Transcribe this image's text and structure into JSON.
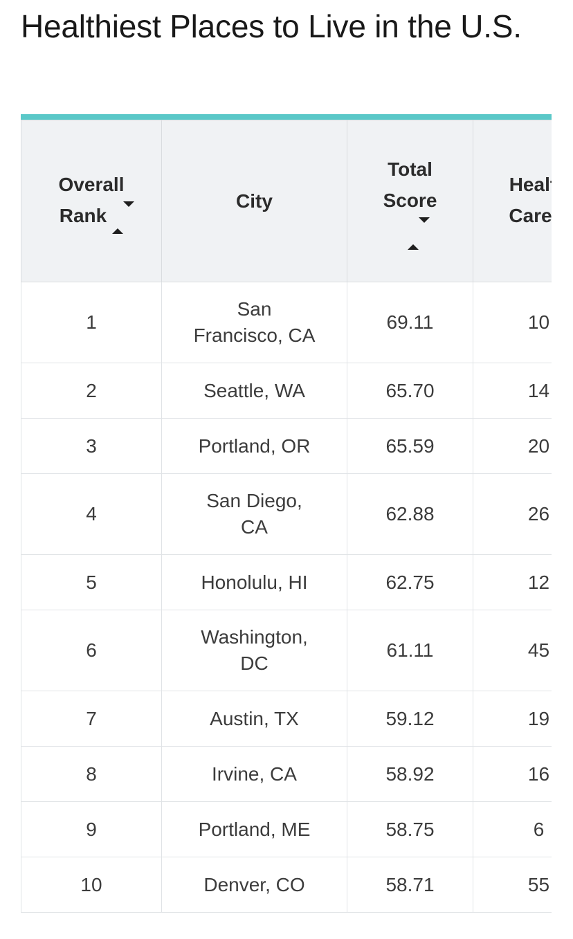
{
  "page": {
    "title": "Healthiest Places to Live in the U.S."
  },
  "table": {
    "columns": [
      {
        "id": "overall_rank",
        "label": "Overall Rank",
        "sortable": true
      },
      {
        "id": "city",
        "label": "City",
        "sortable": false
      },
      {
        "id": "total_score",
        "label": "Total Score",
        "sortable": true
      },
      {
        "id": "health_care",
        "label": "Health Care",
        "sortable": true
      }
    ],
    "rows": [
      {
        "overall_rank": "1",
        "city": "San Francisco, CA",
        "total_score": "69.11",
        "health_care": "10"
      },
      {
        "overall_rank": "2",
        "city": "Seattle, WA",
        "total_score": "65.70",
        "health_care": "14"
      },
      {
        "overall_rank": "3",
        "city": "Portland, OR",
        "total_score": "65.59",
        "health_care": "20"
      },
      {
        "overall_rank": "4",
        "city": "San Diego, CA",
        "total_score": "62.88",
        "health_care": "26"
      },
      {
        "overall_rank": "5",
        "city": "Honolulu, HI",
        "total_score": "62.75",
        "health_care": "12"
      },
      {
        "overall_rank": "6",
        "city": "Washington, DC",
        "total_score": "61.11",
        "health_care": "45"
      },
      {
        "overall_rank": "7",
        "city": "Austin, TX",
        "total_score": "59.12",
        "health_care": "19"
      },
      {
        "overall_rank": "8",
        "city": "Irvine, CA",
        "total_score": "58.92",
        "health_care": "16"
      },
      {
        "overall_rank": "9",
        "city": "Portland, ME",
        "total_score": "58.75",
        "health_care": "6"
      },
      {
        "overall_rank": "10",
        "city": "Denver, CO",
        "total_score": "58.71",
        "health_care": "55"
      }
    ]
  },
  "colors": {
    "accent_teal": "#5ac8c8",
    "header_bg": "#f0f2f4",
    "grid_border": "#e0e3e6",
    "widget_blue": "#2e6fe0",
    "title_text": "#191919",
    "body_text": "#3c3c3c"
  },
  "icons": {
    "sort": "sort-diamond-icon",
    "widget": "person-icon"
  }
}
